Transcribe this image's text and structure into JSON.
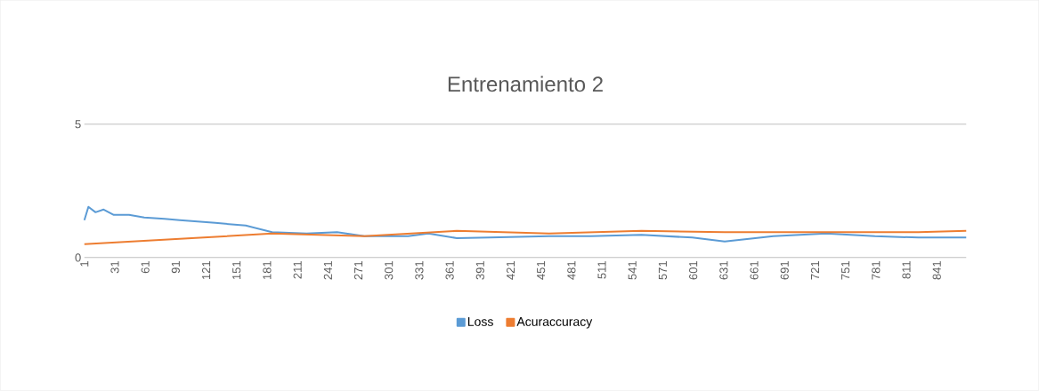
{
  "chart_data": {
    "type": "line",
    "title": "Entrenamiento 2",
    "series": [
      {
        "name": "Loss",
        "color": "#5b9bd5",
        "x": [
          1,
          5,
          12,
          20,
          30,
          45,
          60,
          80,
          95,
          130,
          160,
          186,
          220,
          250,
          277,
          320,
          340,
          368,
          400,
          459,
          500,
          550,
          600,
          632,
          680,
          732,
          780,
          823,
          870
        ],
        "values": [
          1.4,
          1.9,
          1.7,
          1.8,
          1.6,
          1.6,
          1.5,
          1.45,
          1.4,
          1.3,
          1.2,
          0.95,
          0.9,
          0.95,
          0.8,
          0.8,
          0.9,
          0.73,
          0.75,
          0.8,
          0.8,
          0.85,
          0.75,
          0.6,
          0.8,
          0.9,
          0.8,
          0.75,
          0.75
        ]
      },
      {
        "name": "Acuraccuracy",
        "color": "#ed7d31",
        "x": [
          1,
          95,
          186,
          277,
          368,
          459,
          550,
          632,
          732,
          823,
          870
        ],
        "values": [
          0.5,
          0.7,
          0.9,
          0.8,
          1.0,
          0.9,
          1.0,
          0.95,
          0.95,
          0.95,
          1.0
        ]
      }
    ],
    "xlim": [
      1,
      870
    ],
    "xticks": [
      1,
      31,
      61,
      91,
      121,
      151,
      181,
      211,
      241,
      271,
      301,
      331,
      361,
      391,
      421,
      451,
      481,
      511,
      541,
      571,
      601,
      631,
      661,
      691,
      721,
      751,
      781,
      811,
      841
    ],
    "ylim": [
      0,
      5
    ],
    "yticks": [
      0,
      5
    ],
    "legend": "bottom",
    "marker": "none",
    "line_style": "solid"
  }
}
